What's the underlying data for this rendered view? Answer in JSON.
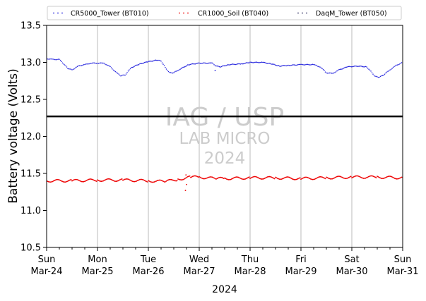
{
  "chart_data": {
    "type": "scatter",
    "xlabel": "2024",
    "ylabel": "Battery voltage (Volts)",
    "ylim": [
      10.5,
      13.5
    ],
    "yticks": [
      10.5,
      11.0,
      11.5,
      12.0,
      12.5,
      13.0,
      13.5
    ],
    "xlim": [
      "2024-03-24 00:00",
      "2024-03-31 00:00"
    ],
    "xticks": [
      {
        "day": "Sun",
        "date": "Mar-24"
      },
      {
        "day": "Mon",
        "date": "Mar-25"
      },
      {
        "day": "Tue",
        "date": "Mar-26"
      },
      {
        "day": "Wed",
        "date": "Mar-27"
      },
      {
        "day": "Thu",
        "date": "Mar-28"
      },
      {
        "day": "Fri",
        "date": "Mar-29"
      },
      {
        "day": "Sat",
        "date": "Mar-30"
      },
      {
        "day": "Sun",
        "date": "Mar-31"
      }
    ],
    "grid": "vertical",
    "legend_position": "top",
    "reference_line": {
      "y": 12.27,
      "color": "#000000"
    },
    "watermark": [
      "IAG / USP",
      "LAB MICRO",
      "2024"
    ],
    "series": [
      {
        "name": "CR5000_Tower (BT010)",
        "color": "#2222dd",
        "points": [
          [
            "2024-03-24 00:00",
            13.05
          ],
          [
            "2024-03-24 03:00",
            13.04
          ],
          [
            "2024-03-24 06:00",
            13.04
          ],
          [
            "2024-03-24 08:00",
            12.98
          ],
          [
            "2024-03-24 10:00",
            12.92
          ],
          [
            "2024-03-24 12:00",
            12.9
          ],
          [
            "2024-03-24 15:00",
            12.95
          ],
          [
            "2024-03-24 18:00",
            12.97
          ],
          [
            "2024-03-24 21:00",
            12.99
          ],
          [
            "2024-03-25 00:00",
            12.99
          ],
          [
            "2024-03-25 03:00",
            12.99
          ],
          [
            "2024-03-25 06:00",
            12.94
          ],
          [
            "2024-03-25 09:00",
            12.86
          ],
          [
            "2024-03-25 11:00",
            12.82
          ],
          [
            "2024-03-25 13:00",
            12.83
          ],
          [
            "2024-03-25 16:00",
            12.93
          ],
          [
            "2024-03-25 20:00",
            12.98
          ],
          [
            "2024-03-26 00:00",
            13.01
          ],
          [
            "2024-03-26 04:00",
            13.03
          ],
          [
            "2024-03-26 06:00",
            13.02
          ],
          [
            "2024-03-26 08:00",
            12.93
          ],
          [
            "2024-03-26 10:00",
            12.86
          ],
          [
            "2024-03-26 12:00",
            12.86
          ],
          [
            "2024-03-26 15:00",
            12.91
          ],
          [
            "2024-03-26 19:00",
            12.97
          ],
          [
            "2024-03-27 00:00",
            12.99
          ],
          [
            "2024-03-27 06:00",
            12.99
          ],
          [
            "2024-03-27 08:00",
            12.95
          ],
          [
            "2024-03-27 10:00",
            12.94
          ],
          [
            "2024-03-27 14:00",
            12.97
          ],
          [
            "2024-03-27 20:00",
            12.98
          ],
          [
            "2024-03-28 00:00",
            13.0
          ],
          [
            "2024-03-28 06:00",
            13.0
          ],
          [
            "2024-03-28 10:00",
            12.98
          ],
          [
            "2024-03-28 14:00",
            12.95
          ],
          [
            "2024-03-28 18:00",
            12.96
          ],
          [
            "2024-03-29 00:00",
            12.97
          ],
          [
            "2024-03-29 06:00",
            12.97
          ],
          [
            "2024-03-29 09:00",
            12.94
          ],
          [
            "2024-03-29 12:00",
            12.86
          ],
          [
            "2024-03-29 15:00",
            12.85
          ],
          [
            "2024-03-29 18:00",
            12.9
          ],
          [
            "2024-03-29 22:00",
            12.94
          ],
          [
            "2024-03-30 03:00",
            12.95
          ],
          [
            "2024-03-30 07:00",
            12.94
          ],
          [
            "2024-03-30 09:00",
            12.88
          ],
          [
            "2024-03-30 11:00",
            12.81
          ],
          [
            "2024-03-30 13:00",
            12.8
          ],
          [
            "2024-03-30 15:00",
            12.83
          ],
          [
            "2024-03-30 18:00",
            12.9
          ],
          [
            "2024-03-30 21:00",
            12.96
          ],
          [
            "2024-03-31 00:00",
            13.0
          ]
        ],
        "outliers": [
          [
            "2024-03-27 07:30",
            12.89
          ]
        ]
      },
      {
        "name": "CR1000_Soil (BT040)",
        "color": "#ee0000",
        "points": [
          [
            "2024-03-24 00:00",
            11.4
          ],
          [
            "2024-03-24 12:00",
            11.4
          ],
          [
            "2024-03-25 00:00",
            11.41
          ],
          [
            "2024-03-25 12:00",
            11.41
          ],
          [
            "2024-03-26 00:00",
            11.4
          ],
          [
            "2024-03-26 08:00",
            11.39
          ],
          [
            "2024-03-26 14:00",
            11.42
          ],
          [
            "2024-03-26 20:00",
            11.45
          ],
          [
            "2024-03-27 00:00",
            11.45
          ],
          [
            "2024-03-27 08:00",
            11.43
          ],
          [
            "2024-03-27 12:00",
            11.43
          ],
          [
            "2024-03-28 00:00",
            11.44
          ],
          [
            "2024-03-28 12:00",
            11.44
          ],
          [
            "2024-03-29 00:00",
            11.43
          ],
          [
            "2024-03-29 12:00",
            11.44
          ],
          [
            "2024-03-30 00:00",
            11.45
          ],
          [
            "2024-03-30 12:00",
            11.45
          ],
          [
            "2024-03-31 00:00",
            11.44
          ]
        ],
        "outliers": [
          [
            "2024-03-26 17:30",
            11.27
          ],
          [
            "2024-03-26 17:45",
            11.48
          ],
          [
            "2024-03-26 18:00",
            11.35
          ]
        ]
      },
      {
        "name": "DaqM_Tower (BT050)",
        "color": "#333366",
        "points": []
      }
    ]
  }
}
